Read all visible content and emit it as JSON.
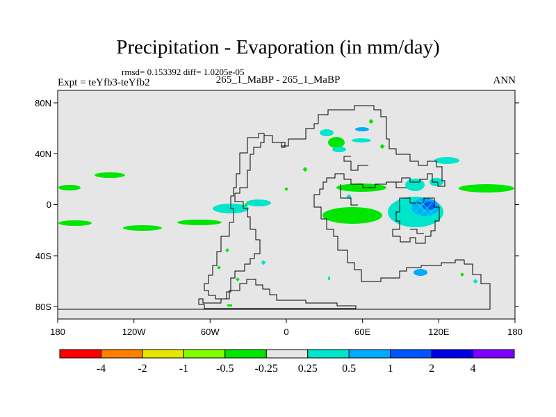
{
  "title": "Precipitation - Evaporation (in mm/day)",
  "stats": "rmsd= 0.153392 diff= 1.0205e-05",
  "subtitle": "265_1_MaBP - 265_1_MaBP",
  "expt": "Expt = teYfb3-teYfb2",
  "season": "ANN",
  "map": {
    "background": "#e6e6e6",
    "lon_labels": [
      "180",
      "120W",
      "60W",
      "0",
      "60E",
      "120E",
      "180"
    ],
    "lat_labels": [
      "80N",
      "40N",
      "0",
      "40S",
      "80S"
    ]
  },
  "colorbar": {
    "colors": [
      "#ff0000",
      "#ff8000",
      "#e6e600",
      "#80ff00",
      "#00e600",
      "#e6e6e6",
      "#00e6cc",
      "#00aaff",
      "#0055ff",
      "#0000e6",
      "#8000ff"
    ],
    "labels": [
      "-4",
      "-2",
      "-1",
      "-0.5",
      "-0.25",
      "0.25",
      "0.5",
      "1",
      "2",
      "4"
    ]
  }
}
